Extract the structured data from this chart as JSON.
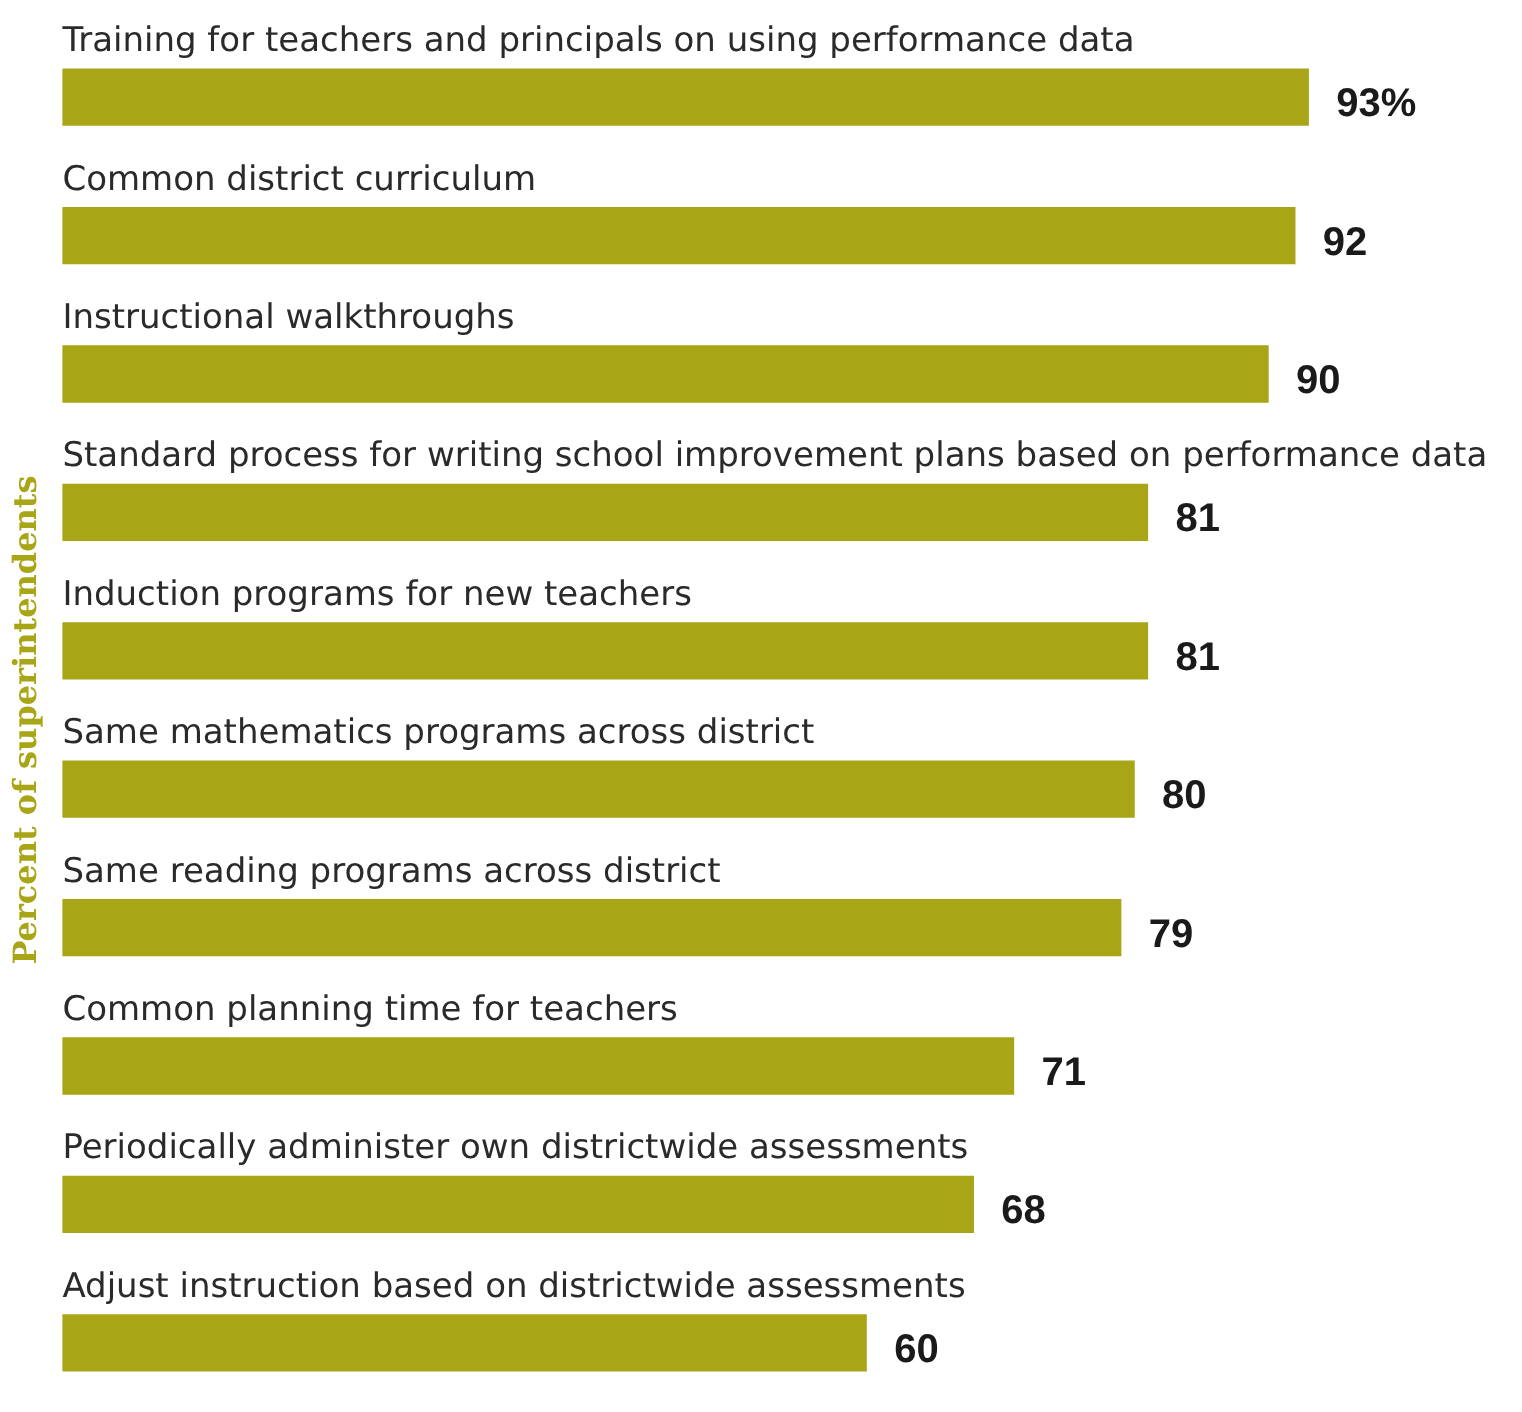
{
  "chart_data": {
    "type": "bar",
    "orientation": "horizontal",
    "ylabel": "Percent of superintendents",
    "categories": [
      "Training for teachers and principals on using performance data",
      "Common district curriculum",
      "Instructional walkthroughs",
      "Standard process for writing school improvement plans based on performance data",
      "Induction programs for new teachers",
      "Same mathematics programs across district",
      "Same reading programs across district",
      "Common planning time for teachers",
      "Periodically administer own districtwide assessments",
      "Adjust instruction based on districtwide assessments"
    ],
    "values": [
      93,
      92,
      90,
      81,
      81,
      80,
      79,
      71,
      68,
      60
    ],
    "value_labels": [
      "93%",
      "92",
      "90",
      "81",
      "81",
      "80",
      "79",
      "71",
      "68",
      "60"
    ],
    "color": "#a8a617",
    "legend": false
  }
}
